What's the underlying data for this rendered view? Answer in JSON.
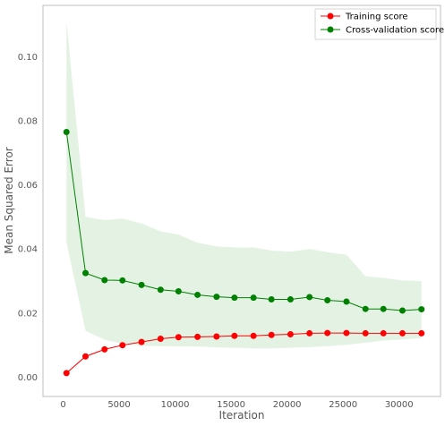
{
  "chart_data": {
    "type": "line",
    "title": "",
    "xlabel": "Iteration",
    "ylabel": "Mean Squared Error",
    "xlim": [
      -1800,
      33700
    ],
    "ylim": [
      -0.006,
      0.116
    ],
    "xticks": [
      0,
      5000,
      10000,
      15000,
      20000,
      25000,
      30000
    ],
    "yticks": [
      0.0,
      0.02,
      0.04,
      0.06,
      0.08,
      0.1
    ],
    "xtick_labels": [
      "0",
      "5000",
      "10000",
      "15000",
      "20000",
      "25000",
      "30000"
    ],
    "ytick_labels": [
      "0.00",
      "0.02",
      "0.04",
      "0.06",
      "0.08",
      "0.10"
    ],
    "grid": false,
    "legend_position": "top-right",
    "x": [
      300,
      2000,
      3700,
      5300,
      7000,
      8700,
      10300,
      12000,
      13700,
      15300,
      17000,
      18600,
      20300,
      22000,
      23600,
      25300,
      27000,
      28600,
      30300,
      32000
    ],
    "series": [
      {
        "name": "Training score",
        "color": "#ff0000",
        "values": [
          0.0013,
          0.0065,
          0.0087,
          0.01,
          0.011,
          0.012,
          0.0125,
          0.0126,
          0.0127,
          0.0129,
          0.0129,
          0.0132,
          0.0134,
          0.0137,
          0.0138,
          0.0138,
          0.0137,
          0.0137,
          0.0137,
          0.0137
        ],
        "band_lower": [
          0.0011,
          0.0063,
          0.0085,
          0.0098,
          0.0108,
          0.0118,
          0.0123,
          0.0124,
          0.0125,
          0.0127,
          0.0127,
          0.013,
          0.0132,
          0.0135,
          0.0136,
          0.0136,
          0.0135,
          0.0135,
          0.0135,
          0.0135
        ],
        "band_upper": [
          0.0015,
          0.0067,
          0.0089,
          0.0102,
          0.0112,
          0.0122,
          0.0127,
          0.0128,
          0.0129,
          0.0131,
          0.0131,
          0.0134,
          0.0136,
          0.0139,
          0.014,
          0.014,
          0.0139,
          0.0139,
          0.0139,
          0.0139
        ]
      },
      {
        "name": "Cross-validation score",
        "color": "#008000",
        "band_color": "#e4f2e4",
        "values": [
          0.0765,
          0.0325,
          0.0303,
          0.0302,
          0.0288,
          0.0273,
          0.0268,
          0.0257,
          0.0251,
          0.0248,
          0.0248,
          0.0243,
          0.0243,
          0.025,
          0.024,
          0.0236,
          0.0213,
          0.0213,
          0.0208,
          0.0212
        ],
        "band_lower": [
          0.042,
          0.0145,
          0.0117,
          0.0104,
          0.0098,
          0.0097,
          0.0096,
          0.0096,
          0.0093,
          0.0092,
          0.009,
          0.009,
          0.0092,
          0.0094,
          0.0097,
          0.0101,
          0.0108,
          0.0114,
          0.0118,
          0.0122
        ],
        "band_upper": [
          0.111,
          0.05,
          0.049,
          0.0495,
          0.048,
          0.0455,
          0.0445,
          0.042,
          0.0408,
          0.0405,
          0.0405,
          0.0395,
          0.0392,
          0.04,
          0.039,
          0.0382,
          0.0315,
          0.031,
          0.0302,
          0.03
        ]
      }
    ]
  }
}
